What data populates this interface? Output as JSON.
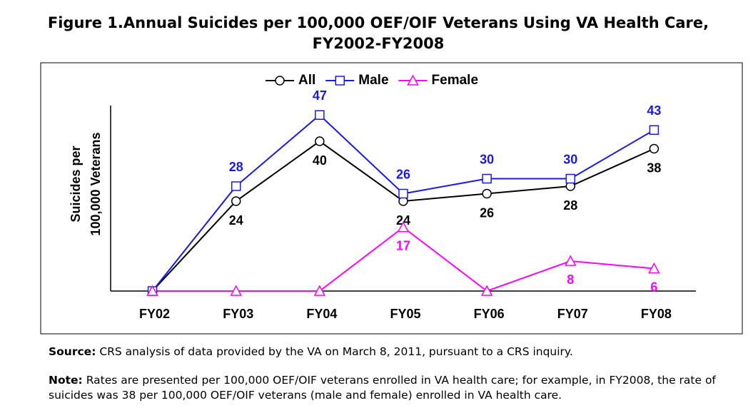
{
  "chart_data": {
    "type": "line",
    "title": [
      "Figure 1.Annual Suicides per 100,000 OEF/OIF Veterans Using VA Health Care,",
      "FY2002-FY2008"
    ],
    "ylabel": [
      "Suicides per",
      "100,000 Veterans"
    ],
    "categories": [
      "FY02",
      "FY03",
      "FY04",
      "FY05",
      "FY06",
      "FY07",
      "FY08"
    ],
    "ylim": [
      0,
      50
    ],
    "legend": "top",
    "series": [
      {
        "name": "All",
        "color": "#000000",
        "marker": "circle",
        "values": [
          0,
          24,
          40,
          24,
          26,
          28,
          38
        ],
        "value_labels": [
          null,
          "24",
          "40",
          "24",
          "26",
          "28",
          "38"
        ]
      },
      {
        "name": "Male",
        "color": "#1a1adf",
        "marker": "square",
        "values": [
          0,
          28,
          47,
          26,
          30,
          30,
          43
        ],
        "value_labels": [
          null,
          "28",
          "47",
          "26",
          "30",
          "30",
          "43"
        ]
      },
      {
        "name": "Female",
        "color": "#ff00ff",
        "marker": "triangle",
        "values": [
          0,
          0,
          0,
          17,
          0,
          8,
          6
        ],
        "value_labels": [
          null,
          null,
          null,
          "17",
          null,
          "8",
          "6"
        ]
      }
    ]
  },
  "source": {
    "label": "Source:",
    "text": "CRS analysis of data provided by the VA on March 8, 2011, pursuant to a CRS inquiry."
  },
  "note": {
    "label": "Note:",
    "text": "Rates are presented per 100,000 OEF/OIF veterans enrolled in VA health care; for example, in FY2008, the rate of suicides was 38 per 100,000 OEF/OIF veterans (male and female) enrolled in VA health care."
  }
}
